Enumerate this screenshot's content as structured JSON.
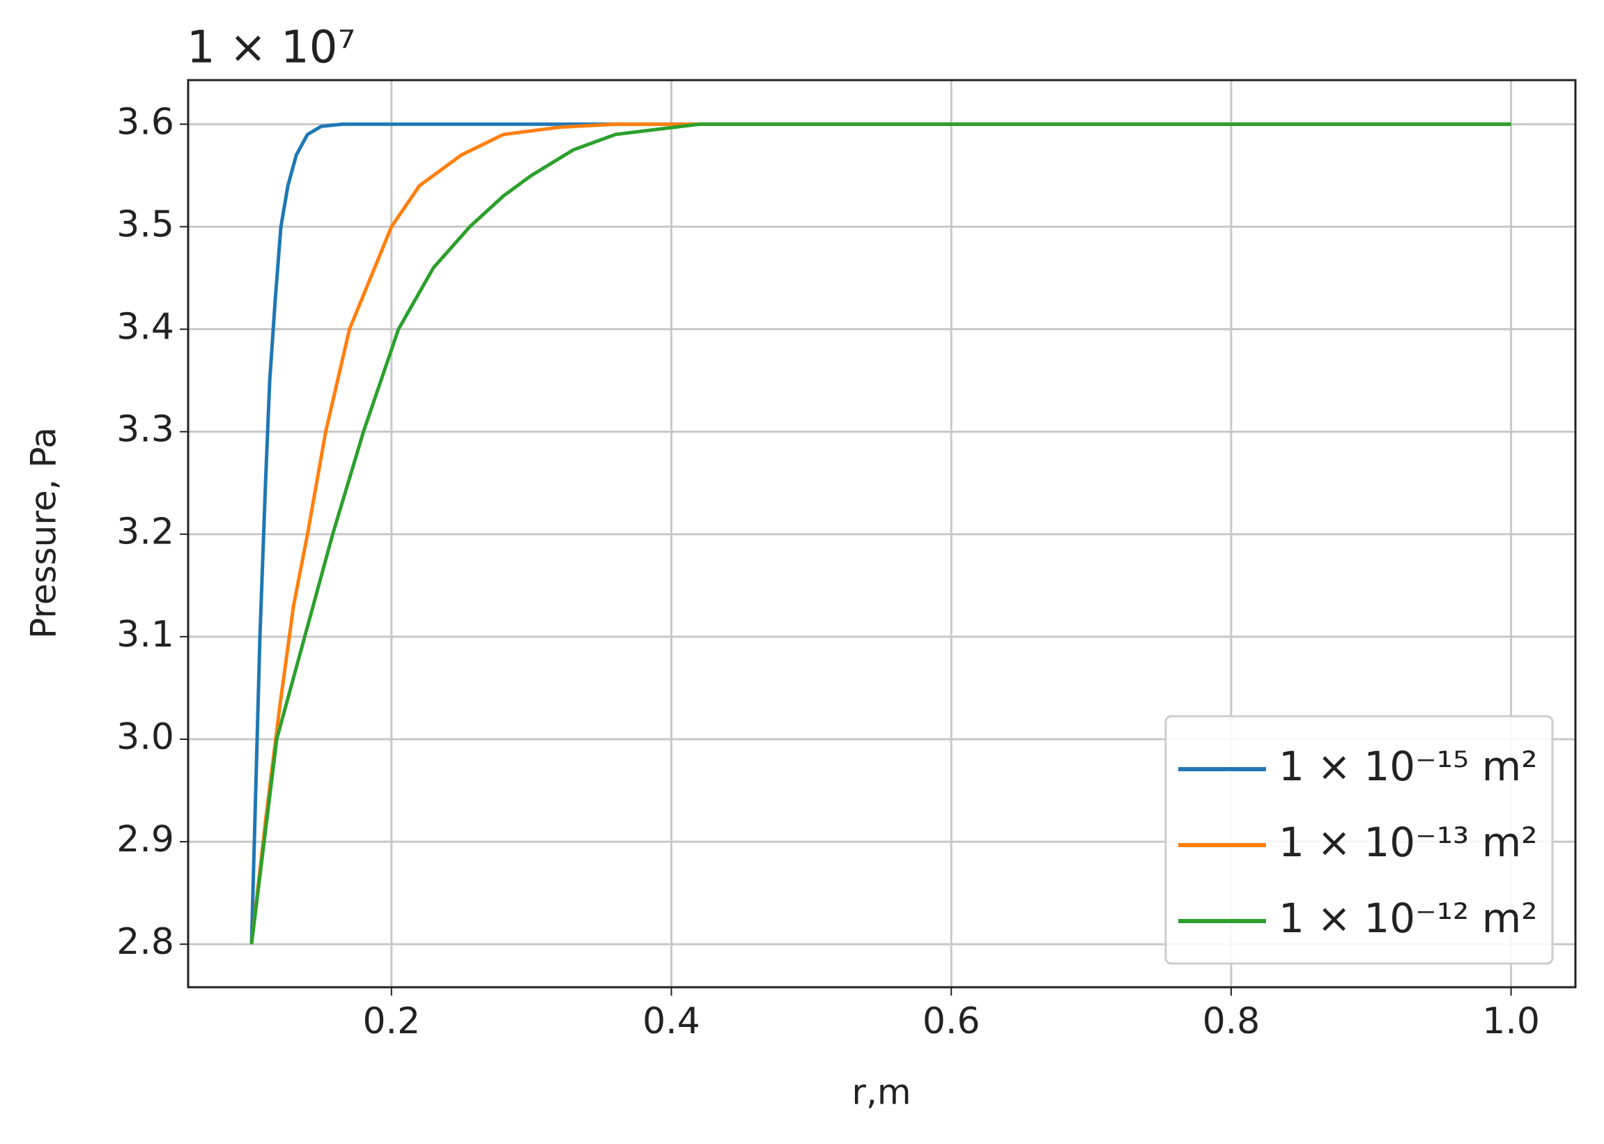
{
  "chart_data": {
    "type": "line",
    "offset_text": "1 × 10⁷",
    "xlabel": "r,m",
    "ylabel": "Pressure, Pa",
    "xlim": [
      0.0547,
      1.046
    ],
    "ylim": [
      2.758,
      3.643
    ],
    "xticks": [
      0.2,
      0.4,
      0.6,
      0.8,
      {
        "value": 1,
        "label": "1.0"
      }
    ],
    "yticks": [
      2.8,
      2.9,
      {
        "value": 3,
        "label": "3.0"
      },
      3.1,
      3.2,
      3.3,
      3.4,
      3.5,
      3.6
    ],
    "grid": true,
    "legend": "lower right",
    "series": [
      {
        "name": "1 × 10⁻¹⁵ m²",
        "color": "#1f77b4",
        "x": [
          0.1,
          0.103,
          0.106,
          0.11,
          0.113,
          0.117,
          0.121,
          0.126,
          0.132,
          0.14,
          0.15,
          0.165,
          0.2,
          0.3,
          0.5,
          0.7,
          1.0
        ],
        "values": [
          2.8,
          2.95,
          3.1,
          3.25,
          3.35,
          3.43,
          3.5,
          3.54,
          3.57,
          3.59,
          3.598,
          3.6,
          3.6,
          3.6,
          3.6,
          3.6,
          3.6
        ]
      },
      {
        "name": "1 × 10⁻¹³ m²",
        "color": "#ff7f0e",
        "x": [
          0.1,
          0.11,
          0.12,
          0.13,
          0.14,
          0.153,
          0.17,
          0.185,
          0.2,
          0.22,
          0.25,
          0.28,
          0.32,
          0.36,
          0.4,
          0.6,
          0.8,
          1.0
        ],
        "values": [
          2.8,
          2.92,
          3.03,
          3.13,
          3.2,
          3.3,
          3.4,
          3.45,
          3.5,
          3.54,
          3.57,
          3.59,
          3.597,
          3.6,
          3.6,
          3.6,
          3.6,
          3.6
        ]
      },
      {
        "name": "1 × 10⁻¹² m²",
        "color": "#2ca02c",
        "x": [
          0.1,
          0.118,
          0.138,
          0.158,
          0.18,
          0.205,
          0.23,
          0.256,
          0.28,
          0.3,
          0.33,
          0.36,
          0.42,
          0.6,
          0.8,
          1.0
        ],
        "values": [
          2.8,
          3.0,
          3.1,
          3.2,
          3.3,
          3.4,
          3.46,
          3.5,
          3.53,
          3.55,
          3.575,
          3.59,
          3.6,
          3.6,
          3.6,
          3.6
        ]
      }
    ]
  }
}
